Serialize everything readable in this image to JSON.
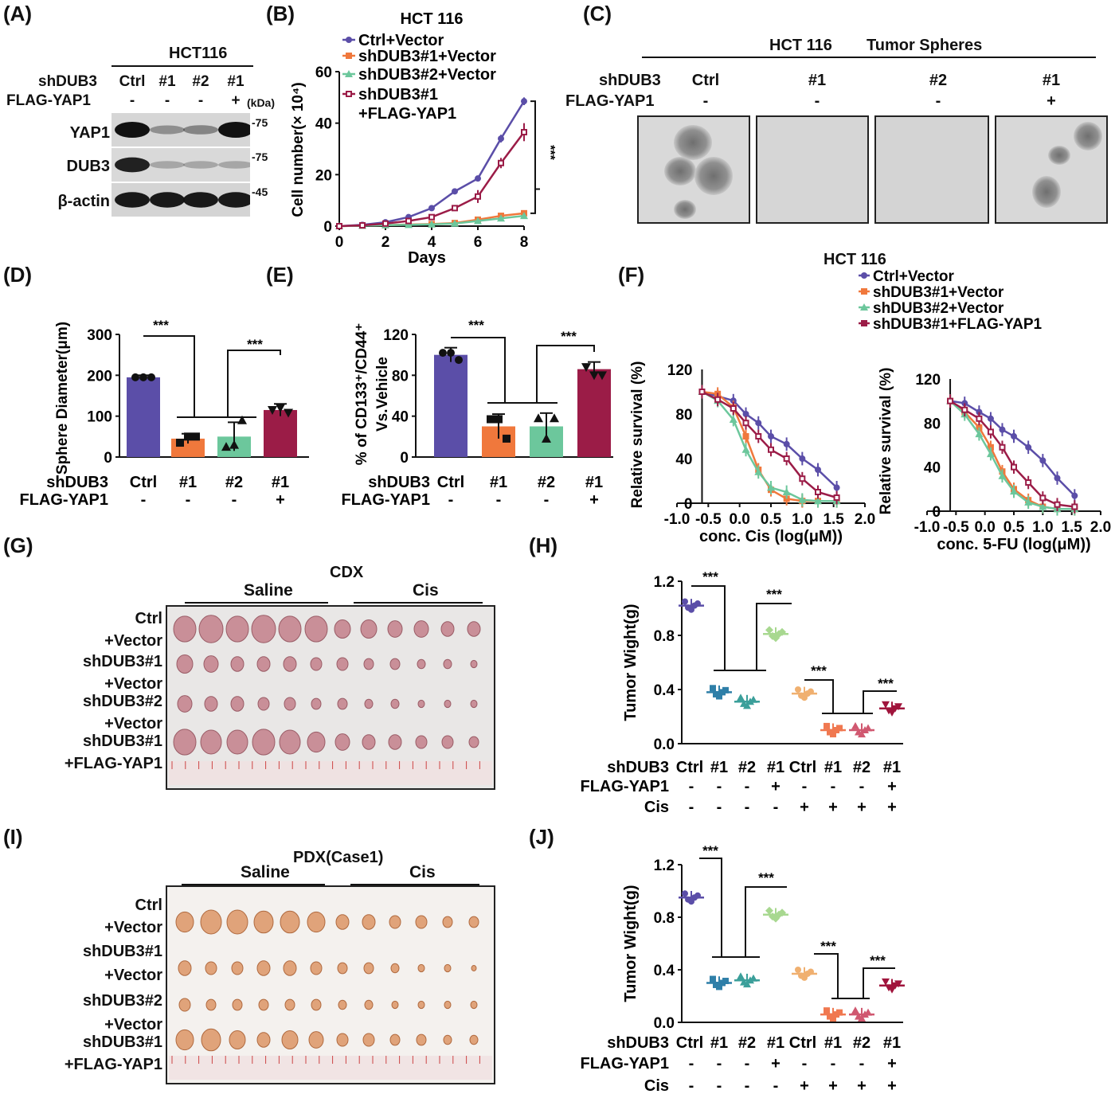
{
  "panels": {
    "A": "(A)",
    "B": "(B)",
    "C": "(C)",
    "D": "(D)",
    "E": "(E)",
    "F": "(F)",
    "G": "(G)",
    "H": "(H)",
    "I": "(I)",
    "J": "(J)"
  },
  "colors": {
    "ctrl_vector": "#5b4ea8",
    "sh1_vector": "#f0783c",
    "sh2_vector": "#6cc79c",
    "sh1_yap1": "#9b1c47",
    "sig_text": "#111111"
  },
  "panel_a": {
    "cell_line": "HCT116",
    "row_labels": [
      "shDUB3",
      "FLAG-YAP1"
    ],
    "lanes": [
      "Ctrl",
      "#1",
      "#2",
      "#1"
    ],
    "flag": [
      "-",
      "-",
      "-",
      "+"
    ],
    "kda_label": "(kDa)",
    "blots": [
      {
        "name": "YAP1",
        "marker": "-75",
        "intensity": [
          1.0,
          0.25,
          0.3,
          1.0
        ]
      },
      {
        "name": "DUB3",
        "marker": "-75",
        "intensity": [
          0.9,
          0.12,
          0.12,
          0.12
        ]
      },
      {
        "name": "β-actin",
        "marker": "-45",
        "intensity": [
          0.95,
          0.95,
          0.95,
          0.95
        ]
      }
    ]
  },
  "panel_c": {
    "title_left": "HCT 116",
    "title_right": "Tumor Spheres",
    "row_labels": [
      "shDUB3",
      "FLAG-YAP1"
    ],
    "lanes": [
      "Ctrl",
      "#1",
      "#2",
      "#1"
    ],
    "flag": [
      "-",
      "-",
      "-",
      "+"
    ],
    "images": [
      "sphere-ctrl",
      "sphere-sh1",
      "sphere-sh2",
      "sphere-sh1-yap1"
    ]
  },
  "panel_g": {
    "title": "CDX",
    "group_saline": "Saline",
    "group_cis": "Cis",
    "row_labels": [
      "Ctrl",
      "+Vector",
      "shDUB3#1",
      "+Vector",
      "shDUB3#2",
      "+Vector",
      "shDUB3#1",
      "+FLAG-YAP1"
    ]
  },
  "panel_i": {
    "title": "PDX(Case1)",
    "group_saline": "Saline",
    "group_cis": "Cis",
    "row_labels": [
      "Ctrl",
      "+Vector",
      "shDUB3#1",
      "+Vector",
      "shDUB3#2",
      "+Vector",
      "shDUB3#1",
      "+FLAG-YAP1"
    ]
  },
  "chart_data": [
    {
      "panel": "B",
      "type": "line",
      "title": "HCT 116",
      "xlabel": "Days",
      "ylabel": "Cell number(× 10⁴)",
      "xlim": [
        0,
        8
      ],
      "ylim": [
        0,
        60
      ],
      "xticks": [
        "0",
        "2",
        "4",
        "6",
        "8"
      ],
      "yticks": [
        "0",
        "20",
        "40",
        "60"
      ],
      "significance": "***",
      "series": [
        {
          "name": "Ctrl+Vector",
          "x": [
            0,
            1,
            2,
            3,
            4,
            5,
            6,
            7,
            8
          ],
          "y": [
            0,
            0.5,
            1.5,
            3.5,
            7,
            13.5,
            18.5,
            34,
            48.5
          ],
          "err": [
            0,
            0,
            0.3,
            0.4,
            0.5,
            0.8,
            1,
            1.5,
            1.5
          ]
        },
        {
          "name": "shDUB3#1+Vector",
          "x": [
            0,
            1,
            2,
            3,
            4,
            5,
            6,
            7,
            8
          ],
          "y": [
            0,
            0.2,
            0.4,
            0.6,
            0.8,
            1.2,
            2.5,
            4,
            5
          ],
          "err": [
            0,
            0,
            0,
            0,
            0,
            0.3,
            0.3,
            0.4,
            0.4
          ]
        },
        {
          "name": "shDUB3#2+Vector",
          "x": [
            0,
            1,
            2,
            3,
            4,
            5,
            6,
            7,
            8
          ],
          "y": [
            0,
            0.2,
            0.4,
            0.5,
            0.7,
            1.0,
            2.0,
            3.0,
            4.0
          ],
          "err": [
            0,
            0,
            0,
            0,
            0,
            0.3,
            0.3,
            0.3,
            0.3
          ]
        },
        {
          "name": "shDUB3#1\n+FLAG-YAP1",
          "x": [
            0,
            1,
            2,
            3,
            4,
            5,
            6,
            7,
            8
          ],
          "y": [
            0,
            0.3,
            1.0,
            2.0,
            3.5,
            7.0,
            11.5,
            24.5,
            36.5
          ],
          "err": [
            0,
            0,
            0.3,
            0.4,
            0.6,
            1.0,
            2.5,
            2.0,
            3.5
          ]
        }
      ]
    },
    {
      "panel": "D",
      "type": "bar",
      "ylabel": "Sphere Diameter(μm)",
      "ylim": [
        0,
        300
      ],
      "yticks": [
        "0",
        "100",
        "200",
        "300"
      ],
      "categories": [
        "Ctrl",
        "#1",
        "#2",
        "#1"
      ],
      "row_labels": [
        "shDUB3",
        "FLAG-YAP1"
      ],
      "flag": [
        "-",
        "-",
        "-",
        "+"
      ],
      "values": [
        195,
        45,
        50,
        115
      ],
      "err": [
        5,
        12,
        35,
        15
      ],
      "points": [
        [
          195,
          195,
          195
        ],
        [
          35,
          50,
          50
        ],
        [
          25,
          30,
          90
        ],
        [
          115,
          120,
          108
        ]
      ],
      "significance": [
        "***",
        "***"
      ]
    },
    {
      "panel": "E",
      "type": "bar",
      "ylabel": "% of CD133⁺/CD44⁺ Vs.Vehicle",
      "ylim": [
        0,
        120
      ],
      "yticks": [
        "0",
        "40",
        "80",
        "120"
      ],
      "categories": [
        "Ctrl",
        "#1",
        "#2",
        "#1"
      ],
      "row_labels": [
        "shDUB3",
        "FLAG-YAP1"
      ],
      "flag": [
        "-",
        "-",
        "-",
        "+"
      ],
      "values": [
        100,
        30,
        30,
        86
      ],
      "err": [
        7,
        12,
        13,
        7
      ],
      "points": [
        [
          102,
          102,
          95
        ],
        [
          37,
          37,
          18
        ],
        [
          38,
          18,
          38
        ],
        [
          88,
          80,
          80
        ]
      ],
      "significance": [
        "***",
        "***"
      ]
    },
    {
      "panel": "F-left",
      "type": "line",
      "title": "HCT 116",
      "xlabel": "conc. Cis (log(μM))",
      "ylabel": "Relative survival (%)",
      "xlim": [
        -1.0,
        2.0
      ],
      "ylim": [
        0,
        120
      ],
      "xticks": [
        "-1.0",
        "-0.5",
        "0.0",
        "0.5",
        "1.0",
        "1.5",
        "2.0"
      ],
      "yticks": [
        "0",
        "40",
        "80",
        "120"
      ],
      "series": [
        {
          "name": "Ctrl+Vector",
          "x": [
            -0.6,
            -0.35,
            -0.1,
            0.1,
            0.3,
            0.5,
            0.75,
            1.0,
            1.25,
            1.55
          ],
          "y": [
            100,
            96,
            92,
            80,
            72,
            60,
            53,
            40,
            30,
            14
          ]
        },
        {
          "name": "shDUB3#1+Vector",
          "x": [
            -0.6,
            -0.35,
            -0.1,
            0.1,
            0.3,
            0.5,
            0.75,
            1.0,
            1.25,
            1.55
          ],
          "y": [
            100,
            98,
            86,
            60,
            30,
            12,
            4,
            2,
            2,
            2
          ]
        },
        {
          "name": "shDUB3#2+Vector",
          "x": [
            -0.6,
            -0.35,
            -0.1,
            0.1,
            0.3,
            0.5,
            0.75,
            1.0,
            1.25,
            1.55
          ],
          "y": [
            100,
            92,
            75,
            48,
            28,
            14,
            10,
            3,
            2,
            2
          ]
        },
        {
          "name": "shDUB3#1+FLAG-YAP1",
          "x": [
            -0.6,
            -0.35,
            -0.1,
            0.1,
            0.3,
            0.5,
            0.75,
            1.0,
            1.25,
            1.55
          ],
          "y": [
            100,
            93,
            85,
            72,
            60,
            48,
            40,
            22,
            10,
            5
          ]
        }
      ]
    },
    {
      "panel": "F-right",
      "type": "line",
      "xlabel": "conc. 5-FU (log(μM))",
      "ylabel": "Relative survival (%)",
      "xlim": [
        -1.0,
        2.0
      ],
      "ylim": [
        0,
        120
      ],
      "xticks": [
        "-1.0",
        "-0.5",
        "0.0",
        "0.5",
        "1.0",
        "1.5",
        "2.0"
      ],
      "yticks": [
        "0",
        "40",
        "80",
        "120"
      ],
      "series": [
        {
          "name": "Ctrl+Vector",
          "x": [
            -0.6,
            -0.35,
            -0.1,
            0.1,
            0.3,
            0.5,
            0.75,
            1.0,
            1.25,
            1.55
          ],
          "y": [
            100,
            98,
            90,
            84,
            74,
            68,
            58,
            46,
            30,
            14
          ]
        },
        {
          "name": "shDUB3#1+Vector",
          "x": [
            -0.6,
            -0.35,
            -0.1,
            0.1,
            0.3,
            0.5,
            0.75,
            1.0,
            1.25,
            1.55
          ],
          "y": [
            100,
            90,
            76,
            58,
            36,
            20,
            10,
            4,
            2,
            2
          ]
        },
        {
          "name": "shDUB3#2+Vector",
          "x": [
            -0.6,
            -0.35,
            -0.1,
            0.1,
            0.3,
            0.5,
            0.75,
            1.0,
            1.25,
            1.55
          ],
          "y": [
            100,
            88,
            70,
            52,
            32,
            18,
            8,
            4,
            2,
            2
          ]
        },
        {
          "name": "shDUB3#1+FLAG-YAP1",
          "x": [
            -0.6,
            -0.35,
            -0.1,
            0.1,
            0.3,
            0.5,
            0.75,
            1.0,
            1.25,
            1.55
          ],
          "y": [
            100,
            92,
            84,
            72,
            58,
            40,
            26,
            12,
            6,
            4
          ]
        }
      ]
    },
    {
      "panel": "H",
      "type": "scatter",
      "ylabel": "Tumor Wight(g)",
      "ylim": [
        0,
        1.2
      ],
      "yticks": [
        "0.0",
        "0.4",
        "0.8",
        "1.2"
      ],
      "categories": [
        "Ctrl",
        "#1",
        "#2",
        "#1",
        "Ctrl",
        "#1",
        "#2",
        "#1"
      ],
      "row_labels": [
        "shDUB3",
        "FLAG-YAP1",
        "Cis"
      ],
      "flag": [
        "-",
        "-",
        "-",
        "+",
        "-",
        "-",
        "-",
        "+"
      ],
      "cis": [
        "-",
        "-",
        "-",
        "-",
        "+",
        "+",
        "+",
        "+"
      ],
      "means": [
        1.02,
        0.38,
        0.31,
        0.81,
        0.37,
        0.1,
        0.1,
        0.26
      ],
      "significance": [
        "***",
        "***",
        "***",
        "***"
      ]
    },
    {
      "panel": "J",
      "type": "scatter",
      "ylabel": "Tumor Wight(g)",
      "ylim": [
        0,
        1.2
      ],
      "yticks": [
        "0.0",
        "0.4",
        "0.8",
        "1.2"
      ],
      "categories": [
        "Ctrl",
        "#1",
        "#2",
        "#1",
        "Ctrl",
        "#1",
        "#2",
        "#1"
      ],
      "row_labels": [
        "shDUB3",
        "FLAG-YAP1",
        "Cis"
      ],
      "flag": [
        "-",
        "-",
        "-",
        "+",
        "-",
        "-",
        "-",
        "+"
      ],
      "cis": [
        "-",
        "-",
        "-",
        "-",
        "+",
        "+",
        "+",
        "+"
      ],
      "means": [
        0.95,
        0.3,
        0.32,
        0.82,
        0.37,
        0.06,
        0.06,
        0.28
      ],
      "significance": [
        "***",
        "***",
        "***",
        "***"
      ]
    }
  ]
}
